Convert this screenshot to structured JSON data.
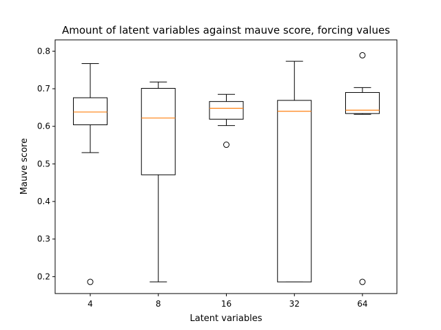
{
  "chart_data": {
    "type": "box",
    "title": "Amount of latent variables against mauve score, forcing values",
    "xlabel": "Latent variables",
    "ylabel": "Mauve score",
    "categories": [
      "4",
      "8",
      "16",
      "32",
      "64"
    ],
    "ylim": [
      0.155,
      0.83
    ],
    "yticks": [
      0.2,
      0.3,
      0.4,
      0.5,
      0.6,
      0.7,
      0.8
    ],
    "ytick_labels": [
      "0.2",
      "0.3",
      "0.4",
      "0.5",
      "0.6",
      "0.7",
      "0.8"
    ],
    "grid": false,
    "boxes": [
      {
        "category": "4",
        "whisker_low": 0.53,
        "q1": 0.604,
        "median": 0.638,
        "q3": 0.676,
        "whisker_high": 0.767,
        "outliers": [
          0.186
        ]
      },
      {
        "category": "8",
        "whisker_low": 0.186,
        "q1": 0.471,
        "median": 0.622,
        "q3": 0.701,
        "whisker_high": 0.718,
        "outliers": []
      },
      {
        "category": "16",
        "whisker_low": 0.602,
        "q1": 0.619,
        "median": 0.648,
        "q3": 0.666,
        "whisker_high": 0.685,
        "outliers": [
          0.551
        ]
      },
      {
        "category": "32",
        "whisker_low": 0.186,
        "q1": 0.186,
        "median": 0.64,
        "q3": 0.669,
        "whisker_high": 0.773,
        "outliers": []
      },
      {
        "category": "64",
        "whisker_low": 0.632,
        "q1": 0.634,
        "median": 0.643,
        "q3": 0.69,
        "whisker_high": 0.703,
        "outliers": [
          0.789,
          0.186
        ]
      }
    ],
    "colors": {
      "box": "#000000",
      "median": "#ff7f0e",
      "outlier": "#000000",
      "background": "#ffffff"
    }
  }
}
